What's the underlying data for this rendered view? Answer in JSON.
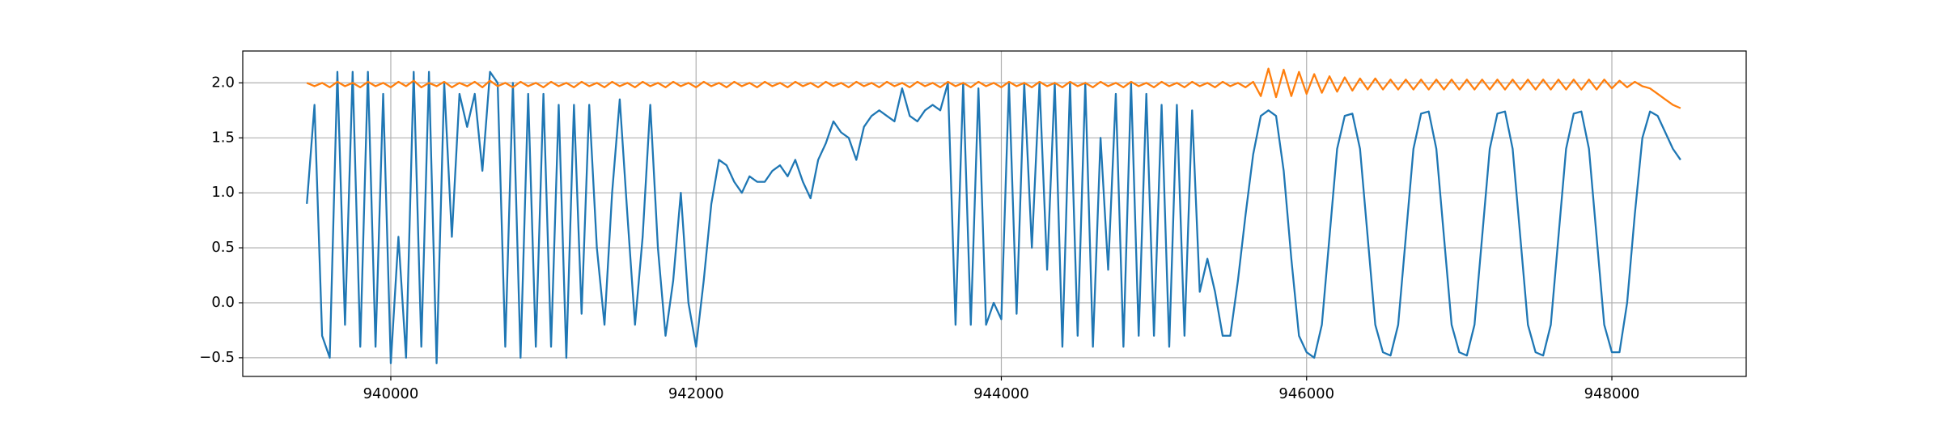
{
  "chart_data": {
    "type": "line",
    "x": [
      939450,
      939500,
      939550,
      939600,
      939650,
      939700,
      939750,
      939800,
      939850,
      939900,
      939950,
      940000,
      940050,
      940100,
      940150,
      940200,
      940250,
      940300,
      940350,
      940400,
      940450,
      940500,
      940550,
      940600,
      940650,
      940700,
      940750,
      940800,
      940850,
      940900,
      940950,
      941000,
      941050,
      941100,
      941150,
      941200,
      941250,
      941300,
      941350,
      941400,
      941450,
      941500,
      941550,
      941600,
      941650,
      941700,
      941750,
      941800,
      941850,
      941900,
      941950,
      942000,
      942050,
      942100,
      942150,
      942200,
      942250,
      942300,
      942350,
      942400,
      942450,
      942500,
      942550,
      942600,
      942650,
      942700,
      942750,
      942800,
      942850,
      942900,
      942950,
      943000,
      943050,
      943100,
      943150,
      943200,
      943250,
      943300,
      943350,
      943400,
      943450,
      943500,
      943550,
      943600,
      943650,
      943700,
      943750,
      943800,
      943850,
      943900,
      943950,
      944000,
      944050,
      944100,
      944150,
      944200,
      944250,
      944300,
      944350,
      944400,
      944450,
      944500,
      944550,
      944600,
      944650,
      944700,
      944750,
      944800,
      944850,
      944900,
      944950,
      945000,
      945050,
      945100,
      945150,
      945200,
      945250,
      945300,
      945350,
      945400,
      945450,
      945500,
      945550,
      945600,
      945650,
      945700,
      945750,
      945800,
      945850,
      945900,
      945950,
      946000,
      946050,
      946100,
      946150,
      946200,
      946250,
      946300,
      946350,
      946400,
      946450,
      946500,
      946550,
      946600,
      946650,
      946700,
      946750,
      946800,
      946850,
      946900,
      946950,
      947000,
      947050,
      947100,
      947150,
      947200,
      947250,
      947300,
      947350,
      947400,
      947450,
      947500,
      947550,
      947600,
      947650,
      947700,
      947750,
      947800,
      947850,
      947900,
      947950,
      948000,
      948050,
      948100,
      948150,
      948200,
      948250,
      948300,
      948350,
      948400,
      948450
    ],
    "series": [
      {
        "color": "#1f77b4",
        "values": [
          0.9,
          1.8,
          -0.3,
          -0.5,
          2.1,
          -0.2,
          2.1,
          -0.4,
          2.1,
          -0.4,
          1.9,
          -0.55,
          0.6,
          -0.5,
          2.1,
          -0.4,
          2.1,
          -0.55,
          2.0,
          0.6,
          1.9,
          1.6,
          1.9,
          1.2,
          2.1,
          2.0,
          -0.4,
          2.0,
          -0.5,
          1.9,
          -0.4,
          1.9,
          -0.4,
          1.8,
          -0.5,
          1.8,
          -0.1,
          1.8,
          0.5,
          -0.2,
          1.0,
          1.85,
          0.8,
          -0.2,
          0.6,
          1.8,
          0.5,
          -0.3,
          0.2,
          1.0,
          0.0,
          -0.4,
          0.2,
          0.9,
          1.3,
          1.25,
          1.1,
          1.0,
          1.15,
          1.1,
          1.1,
          1.2,
          1.25,
          1.15,
          1.3,
          1.1,
          0.95,
          1.3,
          1.45,
          1.65,
          1.55,
          1.5,
          1.3,
          1.6,
          1.7,
          1.75,
          1.7,
          1.65,
          1.95,
          1.7,
          1.65,
          1.75,
          1.8,
          1.75,
          2.0,
          -0.2,
          2.0,
          -0.2,
          1.95,
          -0.2,
          0.0,
          -0.15,
          2.0,
          -0.1,
          2.0,
          0.5,
          2.0,
          0.3,
          2.0,
          -0.4,
          2.0,
          -0.3,
          2.0,
          -0.4,
          1.5,
          0.3,
          1.9,
          -0.4,
          2.0,
          -0.3,
          1.9,
          -0.3,
          1.8,
          -0.4,
          1.8,
          -0.3,
          1.75,
          0.1,
          0.4,
          0.1,
          -0.3,
          -0.3,
          0.2,
          0.8,
          1.35,
          1.7,
          1.75,
          1.7,
          1.2,
          0.4,
          -0.3,
          -0.45,
          -0.5,
          -0.2,
          0.6,
          1.4,
          1.7,
          1.72,
          1.4,
          0.6,
          -0.2,
          -0.45,
          -0.48,
          -0.2,
          0.6,
          1.4,
          1.72,
          1.74,
          1.4,
          0.6,
          -0.2,
          -0.45,
          -0.48,
          -0.2,
          0.6,
          1.4,
          1.72,
          1.74,
          1.4,
          0.6,
          -0.2,
          -0.45,
          -0.48,
          -0.2,
          0.6,
          1.4,
          1.72,
          1.74,
          1.4,
          0.6,
          -0.2,
          -0.45,
          -0.45,
          0.0,
          0.8,
          1.5,
          1.74,
          1.7,
          1.55,
          1.4,
          1.3
        ]
      },
      {
        "color": "#ff7f0e",
        "values": [
          2.0,
          1.97,
          2.0,
          1.96,
          2.01,
          1.97,
          2.0,
          1.96,
          2.01,
          1.97,
          2.0,
          1.96,
          2.01,
          1.97,
          2.02,
          1.96,
          2.0,
          1.97,
          2.01,
          1.96,
          2.0,
          1.97,
          2.01,
          1.96,
          2.02,
          1.97,
          2.0,
          1.96,
          2.01,
          1.97,
          2.0,
          1.96,
          2.01,
          1.97,
          2.0,
          1.96,
          2.01,
          1.97,
          2.0,
          1.96,
          2.01,
          1.97,
          2.0,
          1.96,
          2.01,
          1.97,
          2.0,
          1.96,
          2.01,
          1.97,
          2.0,
          1.96,
          2.01,
          1.97,
          2.0,
          1.96,
          2.01,
          1.97,
          2.0,
          1.96,
          2.01,
          1.97,
          2.0,
          1.96,
          2.01,
          1.97,
          2.0,
          1.96,
          2.01,
          1.97,
          2.0,
          1.96,
          2.01,
          1.97,
          2.0,
          1.96,
          2.01,
          1.97,
          2.0,
          1.96,
          2.01,
          1.97,
          2.0,
          1.96,
          2.01,
          1.97,
          2.0,
          1.96,
          2.01,
          1.97,
          2.0,
          1.96,
          2.01,
          1.97,
          2.0,
          1.96,
          2.01,
          1.97,
          2.0,
          1.96,
          2.01,
          1.97,
          2.0,
          1.96,
          2.01,
          1.97,
          2.0,
          1.96,
          2.01,
          1.97,
          2.0,
          1.96,
          2.01,
          1.97,
          2.0,
          1.96,
          2.01,
          1.97,
          2.0,
          1.96,
          2.01,
          1.97,
          2.0,
          1.96,
          2.01,
          1.88,
          2.13,
          1.87,
          2.12,
          1.88,
          2.1,
          1.9,
          2.08,
          1.91,
          2.06,
          1.92,
          2.05,
          1.93,
          2.04,
          1.94,
          2.04,
          1.94,
          2.03,
          1.94,
          2.03,
          1.94,
          2.03,
          1.94,
          2.03,
          1.94,
          2.03,
          1.94,
          2.03,
          1.94,
          2.03,
          1.94,
          2.03,
          1.94,
          2.03,
          1.94,
          2.03,
          1.94,
          2.03,
          1.94,
          2.03,
          1.94,
          2.03,
          1.94,
          2.03,
          1.94,
          2.03,
          1.95,
          2.02,
          1.96,
          2.01,
          1.97,
          1.95,
          1.9,
          1.85,
          1.8,
          1.77
        ]
      }
    ],
    "xlim": [
      939030,
      948880
    ],
    "ylim": [
      -0.67,
      2.29
    ],
    "xticks": [
      940000,
      942000,
      944000,
      946000,
      948000
    ],
    "yticks": [
      {
        "value": -0.5,
        "label": "−0.5"
      },
      {
        "value": 0,
        "label": "0.0"
      },
      0.5,
      {
        "value": 1,
        "label": "1.0"
      },
      1.5,
      {
        "value": 2,
        "label": "2.0"
      }
    ],
    "grid": true
  }
}
